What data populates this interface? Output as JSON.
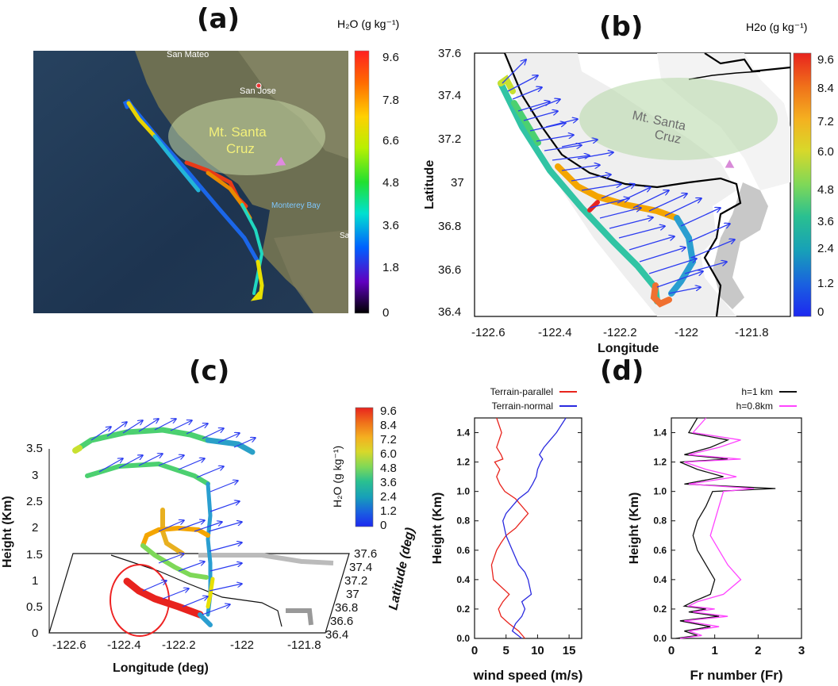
{
  "panels": {
    "a": {
      "label": "(a)",
      "colorbar_title": "H₂O (g kg⁻¹)",
      "colorbar_ticks": [
        "9.6",
        "7.8",
        "6.6",
        "4.8",
        "3.6",
        "1.8",
        "0"
      ],
      "map_places": [
        "San Mateo",
        "San Jose",
        "Monterey Bay",
        "Sal"
      ],
      "region_label": "Mt. Santa Cruz"
    },
    "b": {
      "label": "(b)",
      "colorbar_title": "H2o (g kg⁻¹)",
      "colorbar_ticks": [
        "9.6",
        "8.4",
        "7.2",
        "6.0",
        "4.8",
        "3.6",
        "2.4",
        "1.2",
        "0"
      ],
      "region_label": "Mt. Santa Cruz",
      "xlabel": "Longitude",
      "ylabel": "Latitude",
      "xticks": [
        "-122.6",
        "-122.4",
        "-122.2",
        "-122",
        "-121.8"
      ],
      "yticks": [
        "37.6",
        "37.4",
        "37.2",
        "37",
        "36.8",
        "36.6",
        "36.4"
      ]
    },
    "c": {
      "label": "(c)",
      "colorbar_title": "H₂O (g kg⁻¹)",
      "colorbar_ticks": [
        "9.6",
        "8.4",
        "7.2",
        "6.0",
        "4.8",
        "3.6",
        "2.4",
        "1.2",
        "0"
      ],
      "xlabel": "Longitude (deg)",
      "ylabel": "Height (Km)",
      "zlabel": "Latitude (deg)",
      "xticks": [
        "-122.6",
        "-122.4",
        "-122.2",
        "-122",
        "-121.8"
      ],
      "yticks": [
        "0",
        "0.5",
        "1",
        "1.5",
        "2",
        "2.5",
        "3",
        "3.5"
      ],
      "latticks": [
        "37.6",
        "37.4",
        "37.2",
        "37",
        "36.8",
        "36.6",
        "36.4"
      ]
    },
    "d": {
      "label": "(d)"
    }
  },
  "colors": {
    "parallel": "#e8241d",
    "normal": "#2a2adf",
    "h1": "#111111",
    "h08": "#ff44ff",
    "arrow": "#2b3bf0"
  },
  "chart_data": [
    {
      "type": "line",
      "title": "",
      "xlabel": "wind speed (m/s)",
      "ylabel": "Height (Km)",
      "xlim": [
        0,
        17
      ],
      "ylim": [
        0,
        1.5
      ],
      "xticks": [
        "0",
        "5",
        "10",
        "15"
      ],
      "yticks": [
        "0.0",
        "0.2",
        "0.4",
        "0.6",
        "0.8",
        "1.0",
        "1.2",
        "1.4"
      ],
      "series": [
        {
          "name": "Terrain-parallel",
          "x": [
            8,
            7,
            5.5,
            4.2,
            3.8,
            4.5,
            5.5,
            3,
            2.7,
            3.5,
            4.2,
            5,
            6.5,
            7.5,
            8.5,
            6.5,
            4.8,
            4,
            3.5,
            4,
            3.2,
            4.5,
            4.2,
            3.5,
            4.3,
            3.5
          ],
          "y": [
            0.0,
            0.05,
            0.1,
            0.15,
            0.2,
            0.25,
            0.3,
            0.4,
            0.5,
            0.6,
            0.65,
            0.7,
            0.75,
            0.8,
            0.85,
            0.95,
            1.0,
            1.05,
            1.1,
            1.15,
            1.2,
            1.22,
            1.25,
            1.3,
            1.4,
            1.5
          ]
        },
        {
          "name": "Terrain-normal",
          "x": [
            7.5,
            6,
            6.5,
            7.5,
            8,
            7.5,
            9,
            8.5,
            8,
            7,
            6,
            5,
            4.5,
            5,
            6,
            7,
            8.5,
            9.2,
            9.8,
            10,
            10.5,
            10.8,
            10.3,
            11,
            12,
            13,
            14.5
          ],
          "y": [
            0.0,
            0.05,
            0.1,
            0.15,
            0.2,
            0.25,
            0.3,
            0.4,
            0.45,
            0.5,
            0.6,
            0.7,
            0.8,
            0.85,
            0.9,
            0.95,
            1.0,
            1.05,
            1.1,
            1.15,
            1.2,
            1.22,
            1.25,
            1.3,
            1.35,
            1.4,
            1.5
          ]
        }
      ]
    },
    {
      "type": "line",
      "title": "",
      "xlabel": "Fr number (Fr)",
      "ylabel": "Height (Km)",
      "xlim": [
        0,
        3
      ],
      "ylim": [
        0,
        1.5
      ],
      "xticks": [
        "0",
        "1",
        "2",
        "3"
      ],
      "yticks": [
        "0.0",
        "0.2",
        "0.4",
        "0.6",
        "0.8",
        "1.0",
        "1.2",
        "1.4"
      ],
      "series": [
        {
          "name": "h=1 km",
          "x": [
            0.1,
            0.6,
            0.3,
            0.9,
            0.2,
            1.1,
            0.4,
            0.8,
            0.3,
            0.5,
            0.9,
            1.0,
            0.8,
            0.6,
            0.5,
            0.6,
            0.8,
            0.95,
            2.4,
            0.3,
            1.2,
            0.6,
            0.2,
            1.3,
            0.3,
            0.9,
            1.3,
            0.4,
            0.6
          ],
          "y": [
            0.0,
            0.02,
            0.05,
            0.08,
            0.12,
            0.15,
            0.18,
            0.2,
            0.22,
            0.25,
            0.3,
            0.4,
            0.5,
            0.6,
            0.7,
            0.8,
            0.9,
            1.0,
            1.02,
            1.05,
            1.1,
            1.15,
            1.2,
            1.22,
            1.25,
            1.3,
            1.35,
            1.4,
            1.5
          ]
        },
        {
          "name": "h=0.8km",
          "x": [
            0.2,
            0.7,
            0.4,
            1.1,
            0.3,
            1.3,
            0.5,
            1.0,
            0.4,
            0.6,
            1.2,
            1.6,
            1.3,
            1.1,
            0.9,
            1.0,
            1.1,
            1.2,
            1.9,
            0.4,
            1.5,
            0.8,
            0.3,
            1.6,
            0.4,
            1.1,
            1.6,
            0.5,
            0.8
          ],
          "y": [
            0.0,
            0.02,
            0.05,
            0.08,
            0.12,
            0.15,
            0.18,
            0.2,
            0.22,
            0.25,
            0.3,
            0.4,
            0.5,
            0.6,
            0.7,
            0.8,
            0.9,
            1.0,
            1.02,
            1.05,
            1.1,
            1.15,
            1.2,
            1.22,
            1.25,
            1.3,
            1.35,
            1.4,
            1.5
          ]
        }
      ]
    }
  ]
}
